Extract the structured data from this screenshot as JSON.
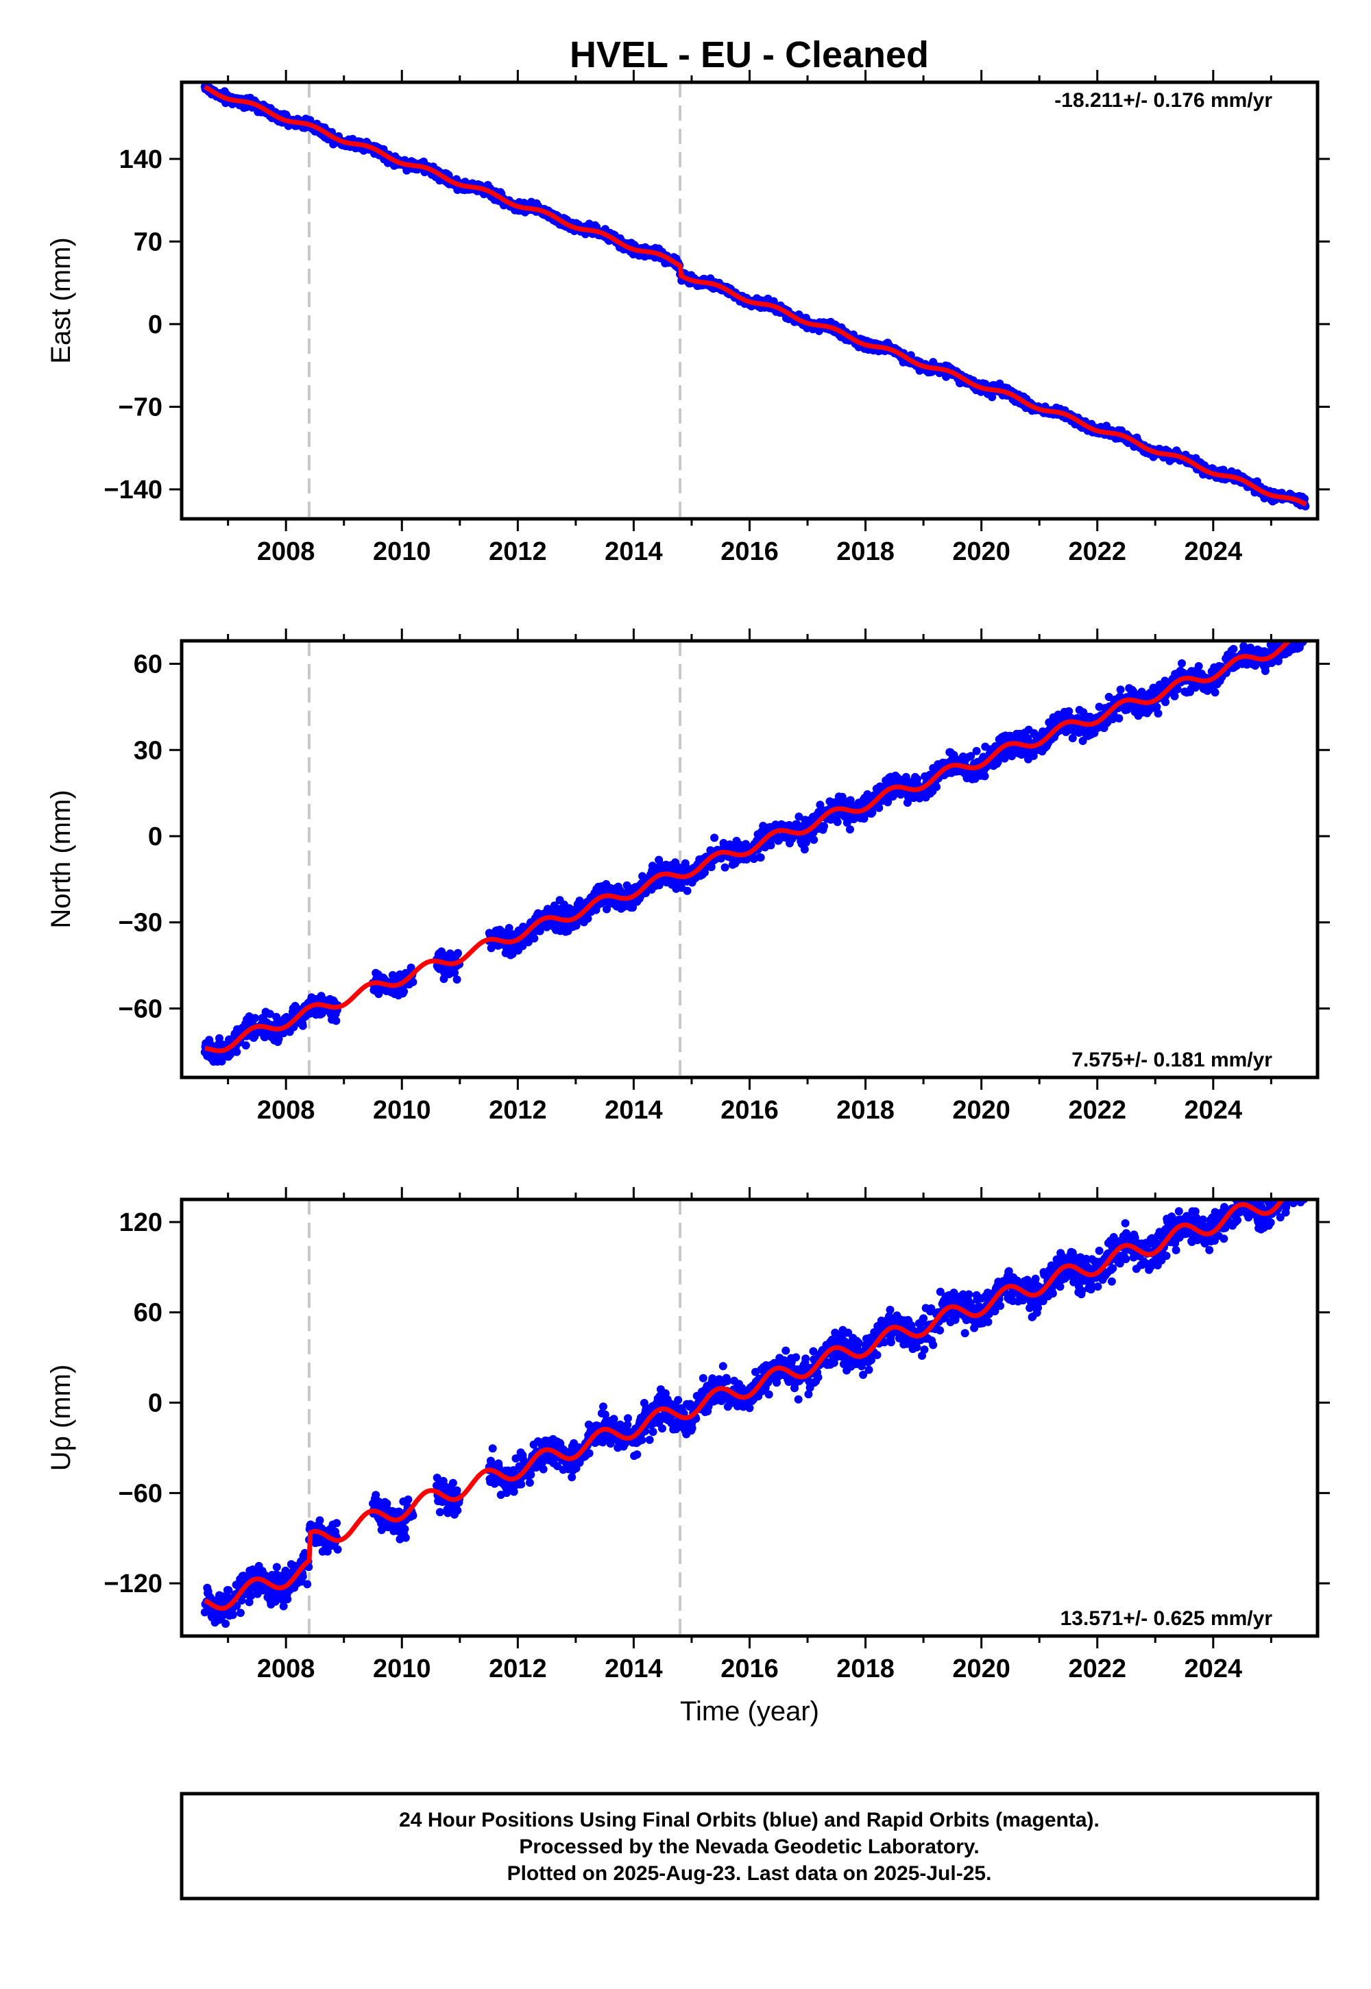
{
  "title": "HVEL  - EU - Cleaned",
  "colors": {
    "points": "#0000ff",
    "model": "#ff0000",
    "offset_lines": "#c8c8c8",
    "frame": "#000000"
  },
  "offset_epochs": [
    2008.4,
    2014.8
  ],
  "chart_data": [
    {
      "type": "scatter",
      "component": "east",
      "ylabel": "East (mm)",
      "xlabel": "",
      "rate_label": "-18.211+/- 0.176 mm/yr",
      "xlim": [
        2006.2,
        2025.8
      ],
      "ylim": [
        -165,
        205
      ],
      "xticks": [
        2008,
        2010,
        2012,
        2014,
        2016,
        2018,
        2020,
        2022,
        2024
      ],
      "yticks": [
        -140,
        -70,
        0,
        70,
        140
      ],
      "trend": {
        "t0": 2006.6,
        "y0": 200,
        "rate": -18.211
      },
      "scatter_mm": 3,
      "segments": [
        [
          2006.6,
          2008.5
        ],
        [
          2008.5,
          2025.6
        ]
      ],
      "gaps": []
    },
    {
      "type": "scatter",
      "component": "north",
      "ylabel": "North (mm)",
      "xlabel": "",
      "rate_label": "7.575+/- 0.181 mm/yr",
      "xlim": [
        2006.2,
        2025.8
      ],
      "ylim": [
        -84,
        68
      ],
      "xticks": [
        2008,
        2010,
        2012,
        2014,
        2016,
        2018,
        2020,
        2022,
        2024
      ],
      "yticks": [
        -60,
        -30,
        0,
        30,
        60
      ],
      "trend": {
        "t0": 2006.6,
        "y0": -75,
        "rate": 7.575
      },
      "scatter_mm": 3,
      "segments": [
        [
          2006.6,
          2008.4
        ],
        [
          2008.4,
          2025.6
        ]
      ],
      "gaps": [
        [
          2008.9,
          2009.5
        ],
        [
          2010.2,
          2010.6
        ],
        [
          2011.0,
          2011.5
        ]
      ]
    },
    {
      "type": "scatter",
      "component": "up",
      "ylabel": "Up (mm)",
      "xlabel": "Time (year)",
      "rate_label": "13.571+/- 0.625 mm/yr",
      "xlim": [
        2006.2,
        2025.8
      ],
      "ylim": [
        -155,
        135
      ],
      "xticks": [
        2008,
        2010,
        2012,
        2014,
        2016,
        2018,
        2020,
        2022,
        2024
      ],
      "yticks": [
        -120,
        -60,
        0,
        60,
        120
      ],
      "trend": {
        "t0": 2006.6,
        "y0": -135,
        "rate": 13.571
      },
      "scatter_mm": 8,
      "segments": [
        [
          2006.6,
          2008.4
        ],
        [
          2008.4,
          2025.6
        ]
      ],
      "gaps": [
        [
          2008.9,
          2009.5
        ],
        [
          2010.2,
          2010.6
        ],
        [
          2011.0,
          2011.5
        ]
      ]
    }
  ],
  "footer": {
    "line1": "24 Hour Positions Using Final Orbits (blue) and Rapid Orbits (magenta).",
    "line2": "Processed by the Nevada Geodetic Laboratory.",
    "line3": "Plotted on 2025-Aug-23. Last data on 2025-Jul-25."
  }
}
